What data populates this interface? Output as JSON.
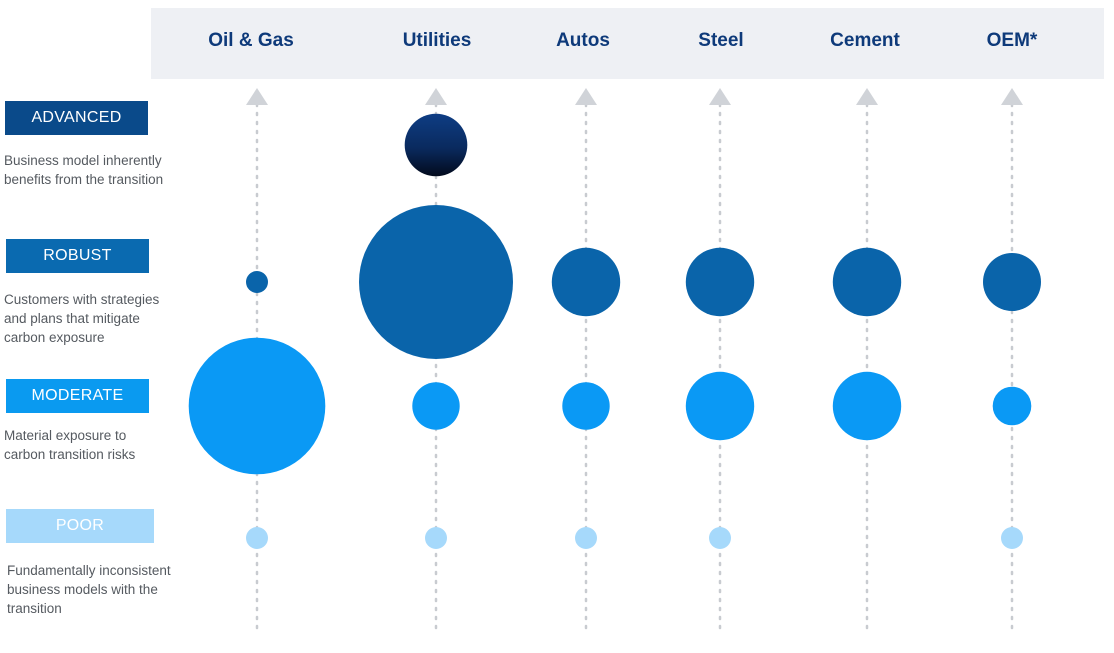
{
  "chart_data": {
    "type": "bubble",
    "categories": [
      "Oil & Gas",
      "Utilities",
      "Autos",
      "Steel",
      "Cement",
      "OEM*"
    ],
    "levels": [
      {
        "key": "advanced",
        "label": "ADVANCED",
        "description": [
          "Business model inherently",
          "benefits from the transition"
        ],
        "box_color": "#0a4a8a",
        "text_color": "#ffffff"
      },
      {
        "key": "robust",
        "label": "ROBUST",
        "description": [
          "Customers with strategies",
          "and plans that mitigate",
          "carbon exposure"
        ],
        "box_color": "#0a6ab0",
        "text_color": "#ffffff"
      },
      {
        "key": "moderate",
        "label": "MODERATE",
        "description": [
          "Material exposure to",
          "carbon transition risks"
        ],
        "box_color": "#0a9af0",
        "text_color": "#ffffff"
      },
      {
        "key": "poor",
        "label": "POOR",
        "description": [
          "Fundamentally inconsistent",
          "business models with the",
          "transition"
        ],
        "box_color": "#a6d9fb",
        "text_color": "#ffffff"
      }
    ],
    "bubble_colors": {
      "advanced": "#0a2a5e",
      "robust": "#0a64aa",
      "moderate": "#0a99f5",
      "poor": "#a6d9fb"
    },
    "series": [
      {
        "category": "Oil & Gas",
        "values": {
          "advanced": 0,
          "robust": 1,
          "moderate": 100,
          "poor": 1
        }
      },
      {
        "category": "Utilities",
        "values": {
          "advanced": 21,
          "robust": 127,
          "moderate": 12,
          "poor": 1
        }
      },
      {
        "category": "Autos",
        "values": {
          "advanced": 0,
          "robust": 25,
          "moderate": 12,
          "poor": 1
        }
      },
      {
        "category": "Steel",
        "values": {
          "advanced": 0,
          "robust": 25,
          "moderate": 25,
          "poor": 1
        }
      },
      {
        "category": "Cement",
        "values": {
          "advanced": 0,
          "robust": 25,
          "moderate": 25,
          "poor": 0
        }
      },
      {
        "category": "OEM*",
        "values": {
          "advanced": 0,
          "robust": 18,
          "moderate": 8,
          "poor": 1
        }
      }
    ],
    "arrow_color": "#d0d3d8",
    "axis_color": "#c8cbd0"
  }
}
